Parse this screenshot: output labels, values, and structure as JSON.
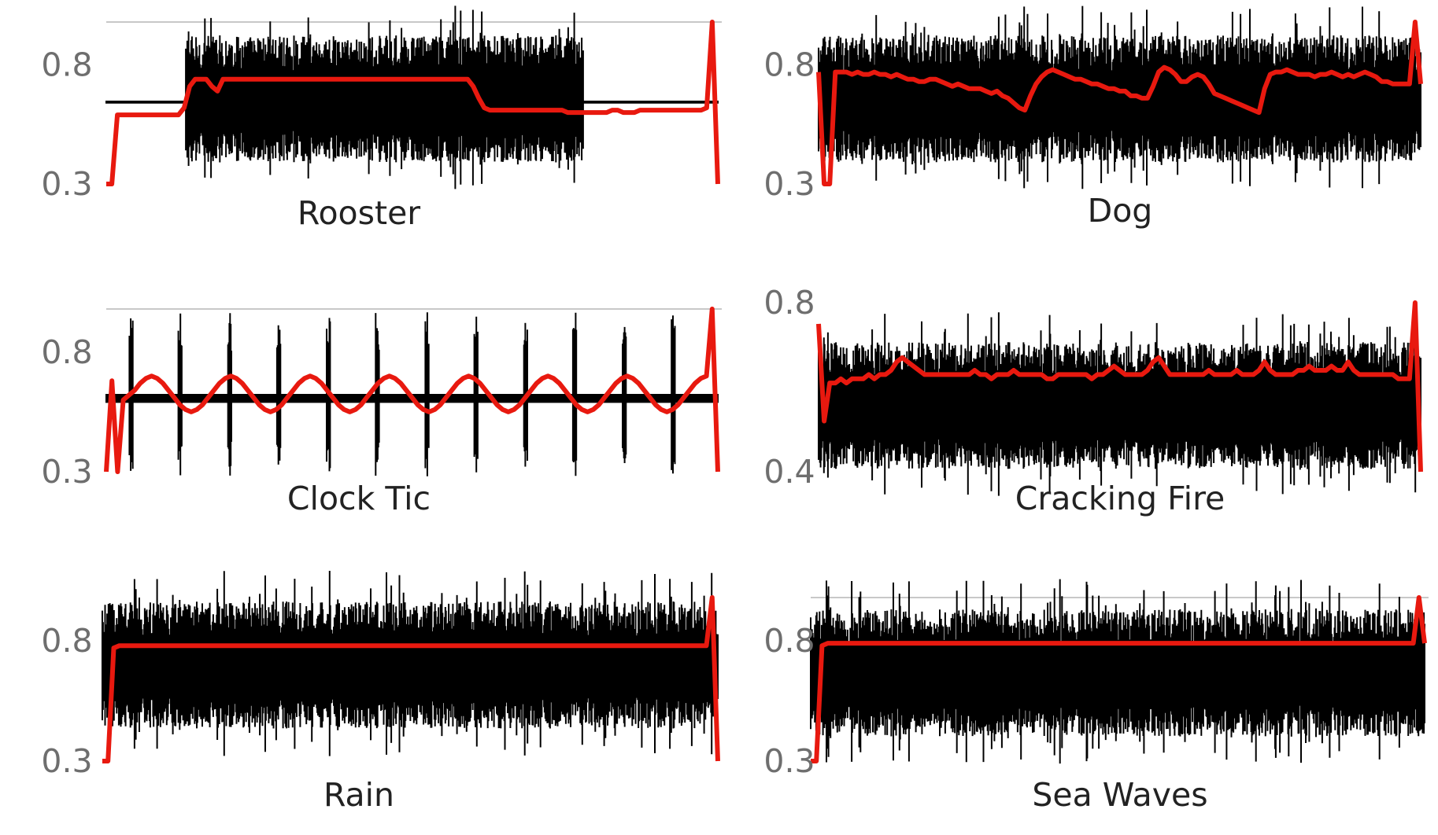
{
  "colors": {
    "waveform": "#000000",
    "feature_line": "#e8190f",
    "gridline": "#c8c8c8",
    "tick_text": "#6e6e6e",
    "title_text": "#222222"
  },
  "chart_data": [
    {
      "type": "line",
      "title": "Rooster",
      "yticks": [
        0.8,
        0.3
      ],
      "ylim": [
        0.3,
        0.98
      ],
      "grid": "top gridline only",
      "series": [
        {
          "values": [
            0.3,
            0.3,
            0.59,
            0.59,
            0.59,
            0.59,
            0.59,
            0.59,
            0.59,
            0.59,
            0.59,
            0.59,
            0.59,
            0.59,
            0.62,
            0.71,
            0.74,
            0.74,
            0.74,
            0.71,
            0.69,
            0.74,
            0.74,
            0.74,
            0.74,
            0.74,
            0.74,
            0.74,
            0.74,
            0.74,
            0.74,
            0.74,
            0.74,
            0.74,
            0.74,
            0.74,
            0.74,
            0.74,
            0.74,
            0.74,
            0.74,
            0.74,
            0.74,
            0.74,
            0.74,
            0.74,
            0.74,
            0.74,
            0.74,
            0.74,
            0.74,
            0.74,
            0.74,
            0.74,
            0.74,
            0.74,
            0.74,
            0.74,
            0.74,
            0.74,
            0.74,
            0.74,
            0.74,
            0.74,
            0.74,
            0.74,
            0.71,
            0.66,
            0.62,
            0.61,
            0.61,
            0.61,
            0.61,
            0.61,
            0.61,
            0.61,
            0.61,
            0.61,
            0.61,
            0.61,
            0.61,
            0.61,
            0.61,
            0.6,
            0.6,
            0.6,
            0.6,
            0.6,
            0.6,
            0.6,
            0.6,
            0.61,
            0.61,
            0.6,
            0.6,
            0.6,
            0.61,
            0.61,
            0.61,
            0.61,
            0.61,
            0.61,
            0.61,
            0.61,
            0.61,
            0.61,
            0.61,
            0.61,
            0.62,
            0.98,
            0.3
          ]
        }
      ]
    },
    {
      "type": "line",
      "title": "Dog",
      "yticks": [
        0.8,
        0.3
      ],
      "ylim": [
        0.3,
        0.98
      ],
      "grid": "top gridline only",
      "series": [
        {
          "values": [
            0.77,
            0.3,
            0.3,
            0.77,
            0.77,
            0.77,
            0.76,
            0.77,
            0.76,
            0.76,
            0.77,
            0.76,
            0.76,
            0.75,
            0.76,
            0.75,
            0.74,
            0.74,
            0.73,
            0.73,
            0.74,
            0.74,
            0.73,
            0.72,
            0.71,
            0.72,
            0.71,
            0.7,
            0.7,
            0.7,
            0.69,
            0.68,
            0.69,
            0.67,
            0.66,
            0.64,
            0.62,
            0.61,
            0.67,
            0.72,
            0.75,
            0.77,
            0.78,
            0.77,
            0.76,
            0.75,
            0.74,
            0.74,
            0.73,
            0.72,
            0.72,
            0.71,
            0.7,
            0.7,
            0.69,
            0.69,
            0.67,
            0.67,
            0.66,
            0.66,
            0.71,
            0.77,
            0.79,
            0.78,
            0.76,
            0.73,
            0.73,
            0.75,
            0.76,
            0.75,
            0.72,
            0.68,
            0.67,
            0.66,
            0.65,
            0.64,
            0.63,
            0.62,
            0.61,
            0.6,
            0.7,
            0.76,
            0.77,
            0.77,
            0.78,
            0.77,
            0.76,
            0.76,
            0.76,
            0.75,
            0.76,
            0.76,
            0.77,
            0.76,
            0.75,
            0.76,
            0.75,
            0.76,
            0.77,
            0.76,
            0.75,
            0.73,
            0.73,
            0.72,
            0.72,
            0.72,
            0.72,
            0.98,
            0.72
          ]
        }
      ]
    },
    {
      "type": "line",
      "title": "Clock Tic",
      "yticks": [
        0.8,
        0.3
      ],
      "ylim": [
        0.3,
        0.98
      ],
      "grid": "top gridline only",
      "series": [
        {
          "values": [
            0.3,
            0.68,
            0.3,
            0.6,
            0.62,
            0.64,
            0.67,
            0.69,
            0.7,
            0.69,
            0.67,
            0.64,
            0.61,
            0.58,
            0.56,
            0.55,
            0.56,
            0.58,
            0.61,
            0.64,
            0.67,
            0.69,
            0.7,
            0.69,
            0.67,
            0.64,
            0.61,
            0.58,
            0.56,
            0.55,
            0.56,
            0.58,
            0.61,
            0.64,
            0.67,
            0.69,
            0.7,
            0.69,
            0.67,
            0.64,
            0.61,
            0.58,
            0.56,
            0.55,
            0.56,
            0.58,
            0.61,
            0.64,
            0.67,
            0.69,
            0.7,
            0.69,
            0.67,
            0.64,
            0.61,
            0.58,
            0.56,
            0.55,
            0.56,
            0.58,
            0.61,
            0.64,
            0.67,
            0.69,
            0.7,
            0.69,
            0.67,
            0.64,
            0.61,
            0.58,
            0.56,
            0.55,
            0.56,
            0.58,
            0.61,
            0.64,
            0.67,
            0.69,
            0.7,
            0.69,
            0.67,
            0.64,
            0.61,
            0.58,
            0.56,
            0.55,
            0.56,
            0.58,
            0.61,
            0.64,
            0.67,
            0.69,
            0.7,
            0.69,
            0.67,
            0.64,
            0.61,
            0.58,
            0.56,
            0.55,
            0.56,
            0.58,
            0.61,
            0.64,
            0.67,
            0.69,
            0.7,
            0.98,
            0.3
          ]
        }
      ]
    },
    {
      "type": "line",
      "title": "Cracking Fire",
      "yticks": [
        0.8,
        0.4
      ],
      "ylim": [
        0.4,
        0.8
      ],
      "grid": "none",
      "series": [
        {
          "values": [
            0.75,
            0.52,
            0.61,
            0.61,
            0.62,
            0.61,
            0.62,
            0.62,
            0.62,
            0.63,
            0.62,
            0.63,
            0.63,
            0.64,
            0.66,
            0.67,
            0.66,
            0.65,
            0.64,
            0.63,
            0.63,
            0.63,
            0.63,
            0.63,
            0.63,
            0.63,
            0.63,
            0.63,
            0.64,
            0.63,
            0.63,
            0.62,
            0.63,
            0.63,
            0.63,
            0.64,
            0.63,
            0.63,
            0.63,
            0.63,
            0.63,
            0.62,
            0.62,
            0.63,
            0.63,
            0.63,
            0.63,
            0.63,
            0.63,
            0.62,
            0.63,
            0.63,
            0.64,
            0.65,
            0.64,
            0.63,
            0.63,
            0.63,
            0.63,
            0.64,
            0.66,
            0.67,
            0.65,
            0.63,
            0.63,
            0.63,
            0.63,
            0.63,
            0.63,
            0.63,
            0.64,
            0.63,
            0.63,
            0.63,
            0.63,
            0.64,
            0.63,
            0.63,
            0.63,
            0.64,
            0.66,
            0.64,
            0.63,
            0.63,
            0.63,
            0.63,
            0.64,
            0.64,
            0.65,
            0.64,
            0.64,
            0.64,
            0.65,
            0.64,
            0.64,
            0.66,
            0.64,
            0.63,
            0.63,
            0.63,
            0.63,
            0.63,
            0.63,
            0.63,
            0.62,
            0.62,
            0.62,
            0.8,
            0.4
          ]
        }
      ]
    },
    {
      "type": "line",
      "title": "Rain",
      "yticks": [
        0.8,
        0.3
      ],
      "ylim": [
        0.3,
        0.98
      ],
      "grid": "none",
      "series": [
        {
          "values": [
            0.3,
            0.3,
            0.77,
            0.78,
            0.78,
            0.78,
            0.78,
            0.78,
            0.78,
            0.78,
            0.78,
            0.78,
            0.78,
            0.78,
            0.78,
            0.78,
            0.78,
            0.78,
            0.78,
            0.78,
            0.78,
            0.78,
            0.78,
            0.78,
            0.78,
            0.78,
            0.78,
            0.78,
            0.78,
            0.78,
            0.78,
            0.78,
            0.78,
            0.78,
            0.78,
            0.78,
            0.78,
            0.78,
            0.78,
            0.78,
            0.78,
            0.78,
            0.78,
            0.78,
            0.78,
            0.78,
            0.78,
            0.78,
            0.78,
            0.78,
            0.78,
            0.78,
            0.78,
            0.78,
            0.78,
            0.78,
            0.78,
            0.78,
            0.78,
            0.78,
            0.78,
            0.78,
            0.78,
            0.78,
            0.78,
            0.78,
            0.78,
            0.78,
            0.78,
            0.78,
            0.78,
            0.78,
            0.78,
            0.78,
            0.78,
            0.78,
            0.78,
            0.78,
            0.78,
            0.78,
            0.78,
            0.78,
            0.78,
            0.78,
            0.78,
            0.78,
            0.78,
            0.78,
            0.78,
            0.78,
            0.78,
            0.78,
            0.78,
            0.78,
            0.78,
            0.78,
            0.78,
            0.78,
            0.78,
            0.78,
            0.78,
            0.78,
            0.78,
            0.78,
            0.78,
            0.78,
            0.78,
            0.98,
            0.3
          ]
        }
      ]
    },
    {
      "type": "line",
      "title": "Sea Waves",
      "yticks": [
        0.8,
        0.3
      ],
      "ylim": [
        0.3,
        0.98
      ],
      "grid": "top gridline only",
      "series": [
        {
          "values": [
            0.3,
            0.3,
            0.78,
            0.79,
            0.79,
            0.79,
            0.79,
            0.79,
            0.79,
            0.79,
            0.79,
            0.79,
            0.79,
            0.79,
            0.79,
            0.79,
            0.79,
            0.79,
            0.79,
            0.79,
            0.79,
            0.79,
            0.79,
            0.79,
            0.79,
            0.79,
            0.79,
            0.79,
            0.79,
            0.79,
            0.79,
            0.79,
            0.79,
            0.79,
            0.79,
            0.79,
            0.79,
            0.79,
            0.79,
            0.79,
            0.79,
            0.79,
            0.79,
            0.79,
            0.79,
            0.79,
            0.79,
            0.79,
            0.79,
            0.79,
            0.79,
            0.79,
            0.79,
            0.79,
            0.79,
            0.79,
            0.79,
            0.79,
            0.79,
            0.79,
            0.79,
            0.79,
            0.79,
            0.79,
            0.79,
            0.79,
            0.79,
            0.79,
            0.79,
            0.79,
            0.79,
            0.79,
            0.79,
            0.79,
            0.79,
            0.79,
            0.79,
            0.79,
            0.79,
            0.79,
            0.79,
            0.79,
            0.79,
            0.79,
            0.79,
            0.79,
            0.79,
            0.79,
            0.79,
            0.79,
            0.79,
            0.79,
            0.79,
            0.79,
            0.79,
            0.79,
            0.79,
            0.79,
            0.79,
            0.79,
            0.79,
            0.79,
            0.79,
            0.79,
            0.79,
            0.79,
            0.79,
            0.98,
            0.79
          ]
        }
      ]
    }
  ]
}
